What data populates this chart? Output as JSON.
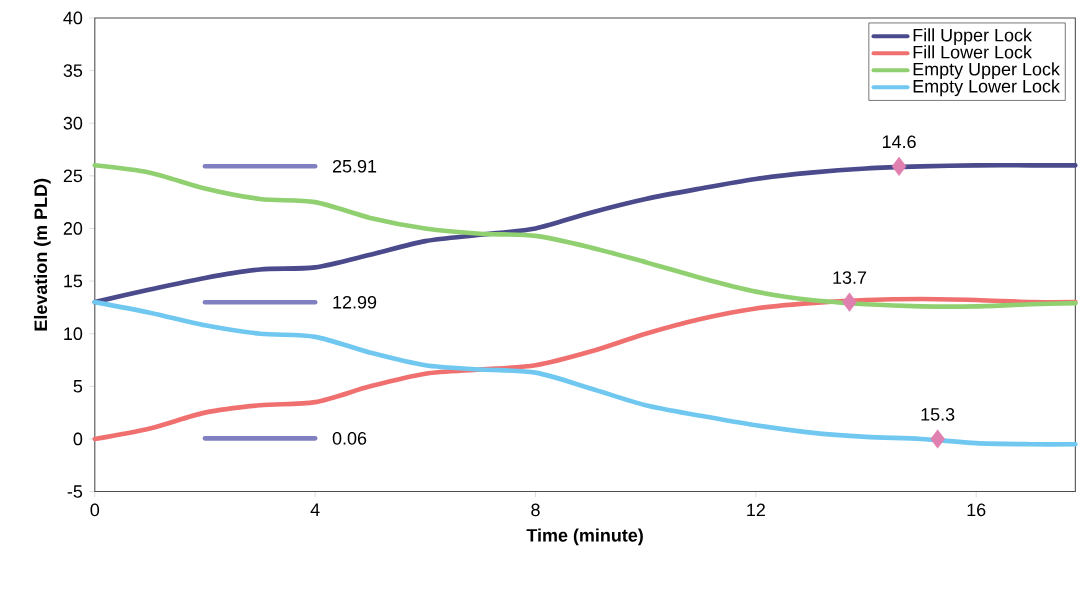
{
  "chart_data": {
    "type": "line",
    "xlabel": "Time (minute)",
    "ylabel": "Elevation (m PLD)",
    "x": [
      0,
      1,
      2,
      3,
      4,
      5,
      6,
      7,
      8,
      9,
      10,
      11,
      12,
      13,
      14,
      15,
      16,
      17,
      17.8
    ],
    "series": [
      {
        "name": "Fill Upper Lock",
        "color": "#4a4a8c",
        "values": [
          13,
          14.2,
          15.3,
          16.1,
          16.3,
          17.5,
          18.8,
          19.4,
          20,
          21.5,
          22.8,
          23.8,
          24.7,
          25.3,
          25.7,
          25.9,
          26,
          26,
          26
        ]
      },
      {
        "name": "Fill Lower Lock",
        "color": "#f07070",
        "values": [
          0,
          1,
          2.5,
          3.2,
          3.5,
          5,
          6.2,
          6.6,
          7,
          8.3,
          10,
          11.4,
          12.4,
          12.9,
          13.2,
          13.3,
          13.2,
          13,
          13
        ]
      },
      {
        "name": "Empty Upper Lock",
        "color": "#90d070",
        "values": [
          26,
          25.3,
          23.8,
          22.8,
          22.5,
          21,
          20,
          19.5,
          19.3,
          18.2,
          16.8,
          15.3,
          14,
          13.2,
          12.8,
          12.6,
          12.6,
          12.8,
          12.9
        ]
      },
      {
        "name": "Empty Lower Lock",
        "color": "#70c8f0",
        "values": [
          13,
          12,
          10.8,
          10,
          9.7,
          8.2,
          7,
          6.6,
          6.3,
          4.8,
          3.2,
          2.2,
          1.3,
          0.6,
          0.2,
          0,
          -0.4,
          -0.5,
          -0.5
        ]
      },
      {
        "type": "line",
        "color": "#8080c0",
        "x": [
          2,
          4
        ],
        "values": [
          25.91,
          25.91
        ]
      },
      {
        "type": "line",
        "color": "#8080c0",
        "x": [
          2,
          4
        ],
        "values": [
          12.99,
          12.99
        ]
      },
      {
        "type": "line",
        "color": "#8080c0",
        "x": [
          2,
          4
        ],
        "values": [
          0.06,
          0.06
        ]
      },
      {
        "type": "scatter",
        "color": "#e080b0",
        "marker": "diamond",
        "x": [
          14.6,
          13.7,
          15.3
        ],
        "values": [
          25.9,
          13,
          0
        ]
      }
    ],
    "annotations": [
      {
        "text": "25.91",
        "x": 4,
        "y": 25.91
      },
      {
        "text": "12.99",
        "x": 4,
        "y": 12.99
      },
      {
        "text": "0.06",
        "x": 4,
        "y": 0.06
      },
      {
        "text": "14.6",
        "x": 14.6,
        "y": 25.9
      },
      {
        "text": "13.7",
        "x": 13.7,
        "y": 13
      },
      {
        "text": "15.3",
        "x": 15.3,
        "y": 0
      }
    ],
    "xlim": [
      0,
      17.8
    ],
    "ylim": [
      -5,
      40
    ],
    "xticks": [
      0,
      4,
      8,
      12,
      16
    ],
    "yticks": [
      -5,
      0,
      5,
      10,
      15,
      20,
      25,
      30,
      35,
      40
    ],
    "legend": "top right",
    "marker": "none",
    "line_style": "solid",
    "grid": false
  }
}
